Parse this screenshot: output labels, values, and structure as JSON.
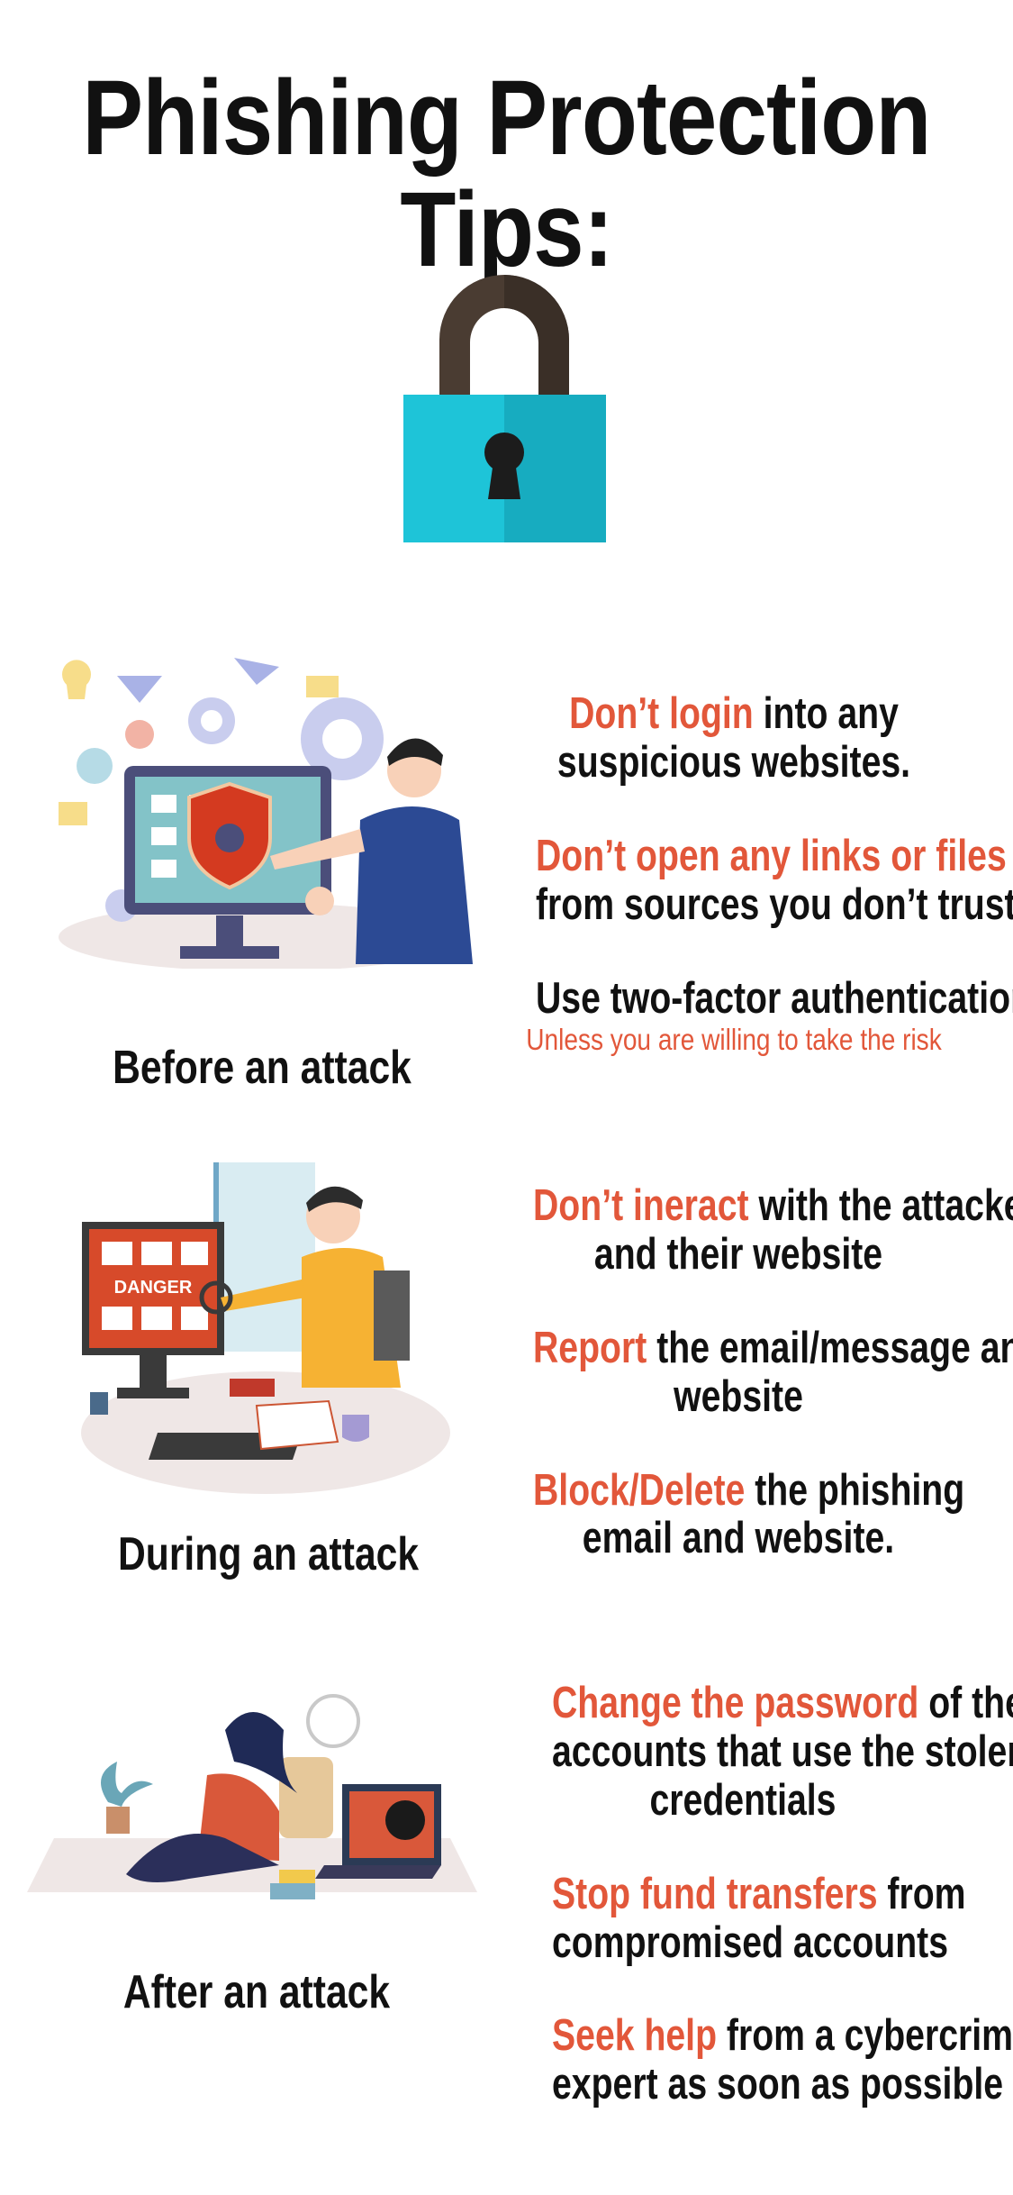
{
  "title": "Phishing Protection Tips:",
  "colors": {
    "accent": "#e2573a",
    "lock_body": "#1cbcd0",
    "lock_shackle": "#4a3c32",
    "text": "#111111"
  },
  "icons": [
    "padlock-icon",
    "computer-shield-illustration",
    "danger-monitor-illustration",
    "hacked-laptop-illustration"
  ],
  "sections": [
    {
      "label": "Before an attack",
      "tips": [
        {
          "highlight": "Don’t login",
          "line1_rest": " into any",
          "line2": "suspicious websites."
        },
        {
          "highlight": "Don’t open any links or files",
          "line1_rest": "",
          "line2": "from sources you don’t trust"
        },
        {
          "highlight": "",
          "line1_rest": "Use two-factor authentication",
          "line2": ""
        }
      ],
      "note": "Unless you are willing to take the risk"
    },
    {
      "label": "During an attack",
      "tips": [
        {
          "highlight": "Don’t ineract",
          "line1_rest": " with the attacker",
          "line2": "and their website"
        },
        {
          "highlight": "Report",
          "line1_rest": " the email/message and",
          "line2": "website"
        },
        {
          "highlight": "Block/Delete",
          "line1_rest": " the phishing",
          "line2": "email and website."
        }
      ]
    },
    {
      "label": "After an attack",
      "tips": [
        {
          "highlight": "Change the password",
          "line1_rest": " of the",
          "line2": "accounts that use the stolen",
          "line3": "credentials"
        },
        {
          "highlight": "Stop fund transfers",
          "line1_rest": " from",
          "line2": "compromised accounts"
        },
        {
          "highlight": "Seek help",
          "line1_rest": " from a cybercrime",
          "line2": "expert as soon as possible"
        }
      ]
    }
  ]
}
